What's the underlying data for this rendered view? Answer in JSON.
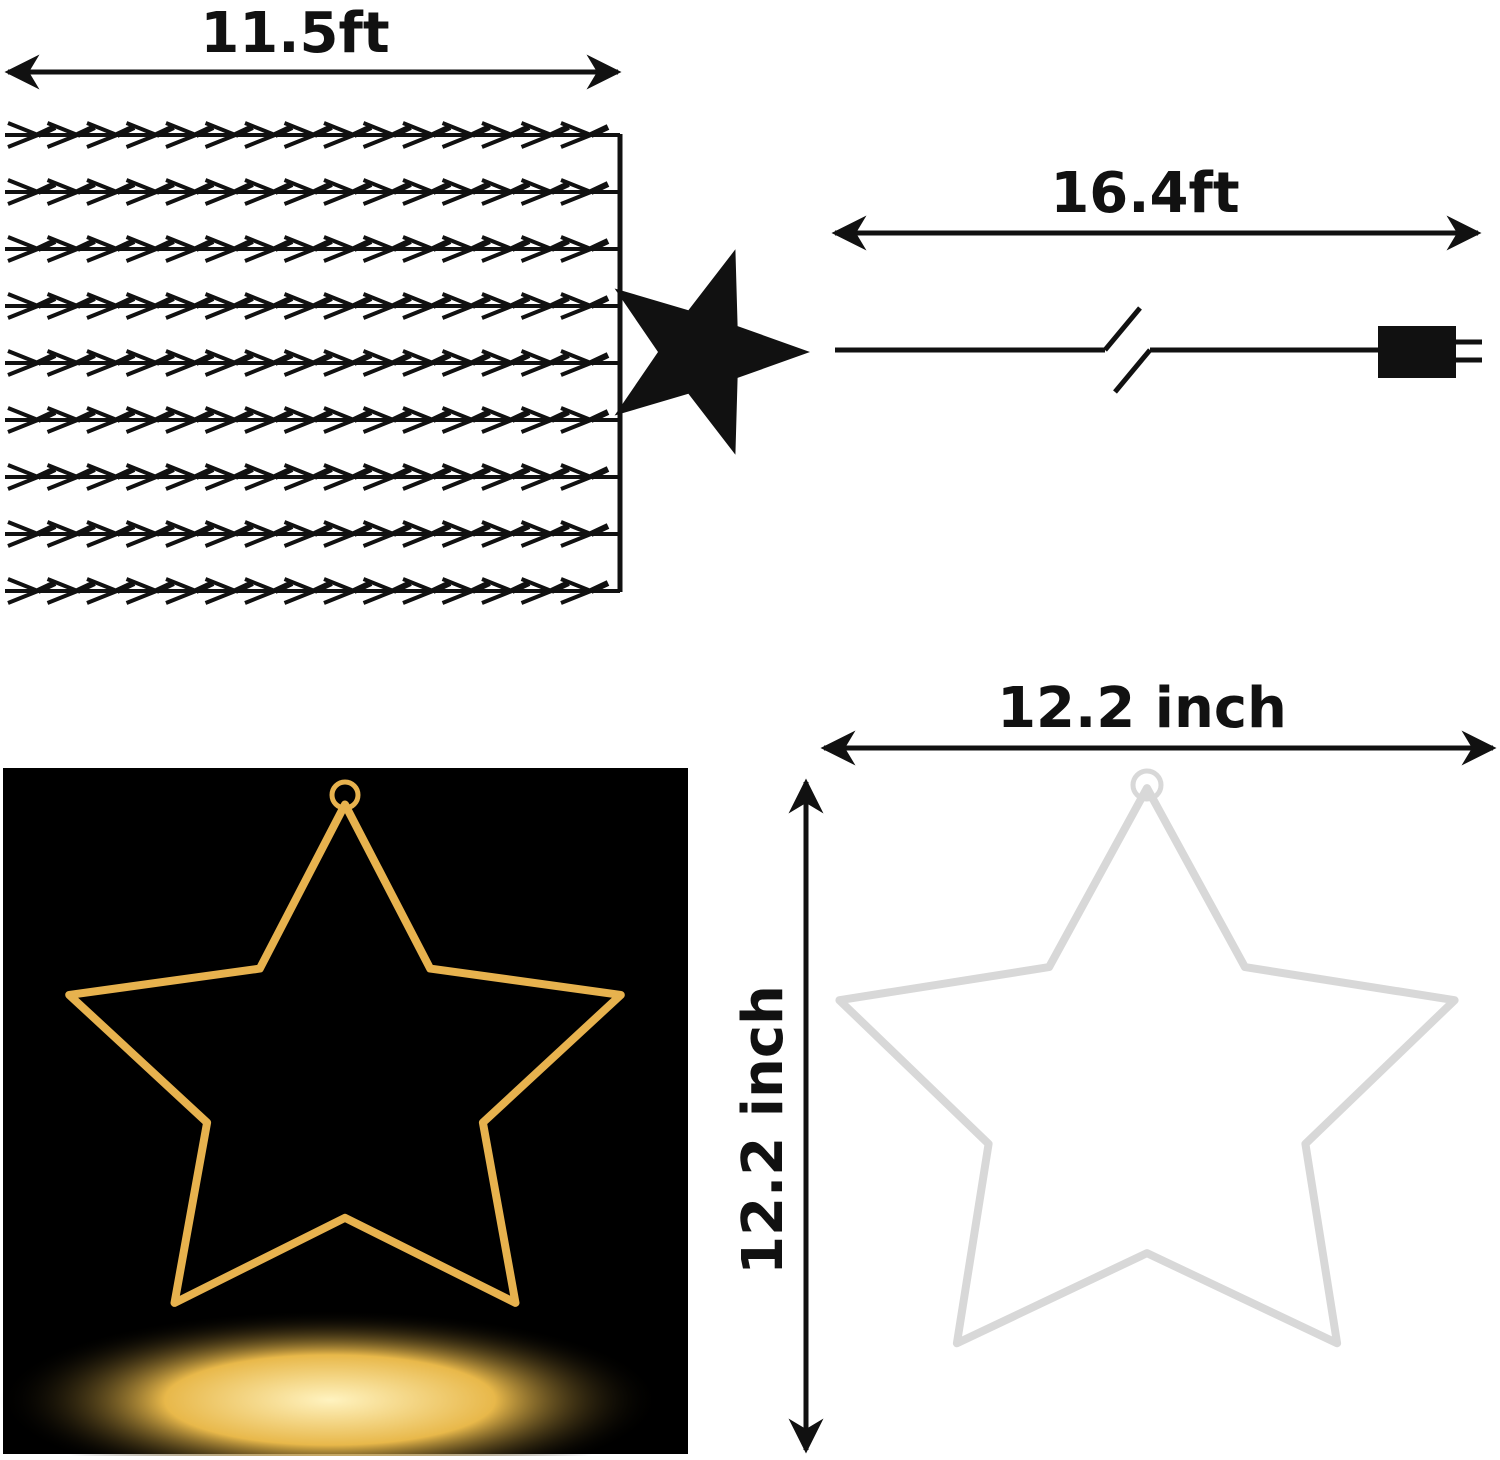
{
  "dimensions": {
    "strand_width": "11.5ft",
    "cord_length": "16.4ft",
    "star_width": "12.2 inch",
    "star_height": "12.2 inch"
  }
}
